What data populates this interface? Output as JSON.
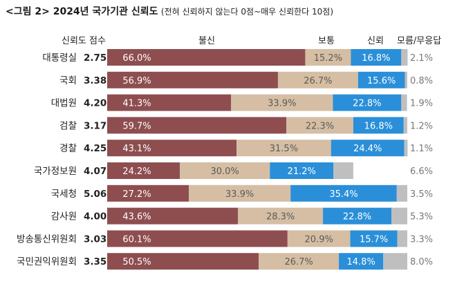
{
  "title": {
    "main": "<그림 2> 2024년 국가기관 신뢰도",
    "sub": "(전혀 신뢰하지 않는다 0점~매우 신뢰한다 10점)"
  },
  "headers": {
    "score": "신뢰도 점수",
    "distrust": "불신",
    "neutral": "보통",
    "trust": "신뢰",
    "dontknow": "모름/무응답"
  },
  "colors": {
    "distrust": "#8e4e50",
    "neutral": "#d5bea3",
    "trust": "#2a8fd8",
    "dontknow": "#bfbfbf"
  },
  "chart_data": {
    "type": "bar",
    "stacked": true,
    "orientation": "horizontal",
    "categories": [
      "대통령실",
      "국회",
      "대법원",
      "검찰",
      "경찰",
      "국가정보원",
      "국세청",
      "감사원",
      "방송통신위원회",
      "국민권익위원회"
    ],
    "scores": [
      "2.75",
      "3.38",
      "4.20",
      "3.17",
      "4.25",
      "4.07",
      "5.06",
      "4.00",
      "3.03",
      "3.35"
    ],
    "series": [
      {
        "name": "불신",
        "values": [
          66.0,
          56.9,
          41.3,
          59.7,
          43.1,
          24.2,
          27.2,
          43.6,
          60.1,
          50.5
        ]
      },
      {
        "name": "보통",
        "values": [
          15.2,
          26.7,
          33.9,
          22.3,
          31.5,
          30.0,
          33.9,
          28.3,
          20.9,
          26.7
        ]
      },
      {
        "name": "신뢰",
        "values": [
          16.8,
          15.6,
          22.8,
          16.8,
          24.4,
          21.2,
          35.4,
          22.8,
          15.7,
          14.8
        ]
      },
      {
        "name": "모름/무응답",
        "values": [
          2.1,
          0.8,
          1.9,
          1.2,
          1.1,
          6.6,
          3.5,
          5.3,
          3.3,
          8.0
        ]
      }
    ],
    "labels": {
      "distrust": [
        "66.0%",
        "56.9%",
        "41.3%",
        "59.7%",
        "43.1%",
        "24.2%",
        "27.2%",
        "43.6%",
        "60.1%",
        "50.5%"
      ],
      "neutral": [
        "15.2%",
        "26.7%",
        "33.9%",
        "22.3%",
        "31.5%",
        "30.0%",
        "33.9%",
        "28.3%",
        "20.9%",
        "26.7%"
      ],
      "trust": [
        "16.8%",
        "15.6%",
        "22.8%",
        "16.8%",
        "24.4%",
        "21.2%",
        "35.4%",
        "22.8%",
        "15.7%",
        "14.8%"
      ],
      "dontknow": [
        "2.1%",
        "0.8%",
        "1.9%",
        "1.2%",
        "1.1%",
        "6.6%",
        "3.5%",
        "5.3%",
        "3.3%",
        "8.0%"
      ]
    },
    "xlim": [
      0,
      100
    ],
    "legend": "none",
    "grid": false
  }
}
